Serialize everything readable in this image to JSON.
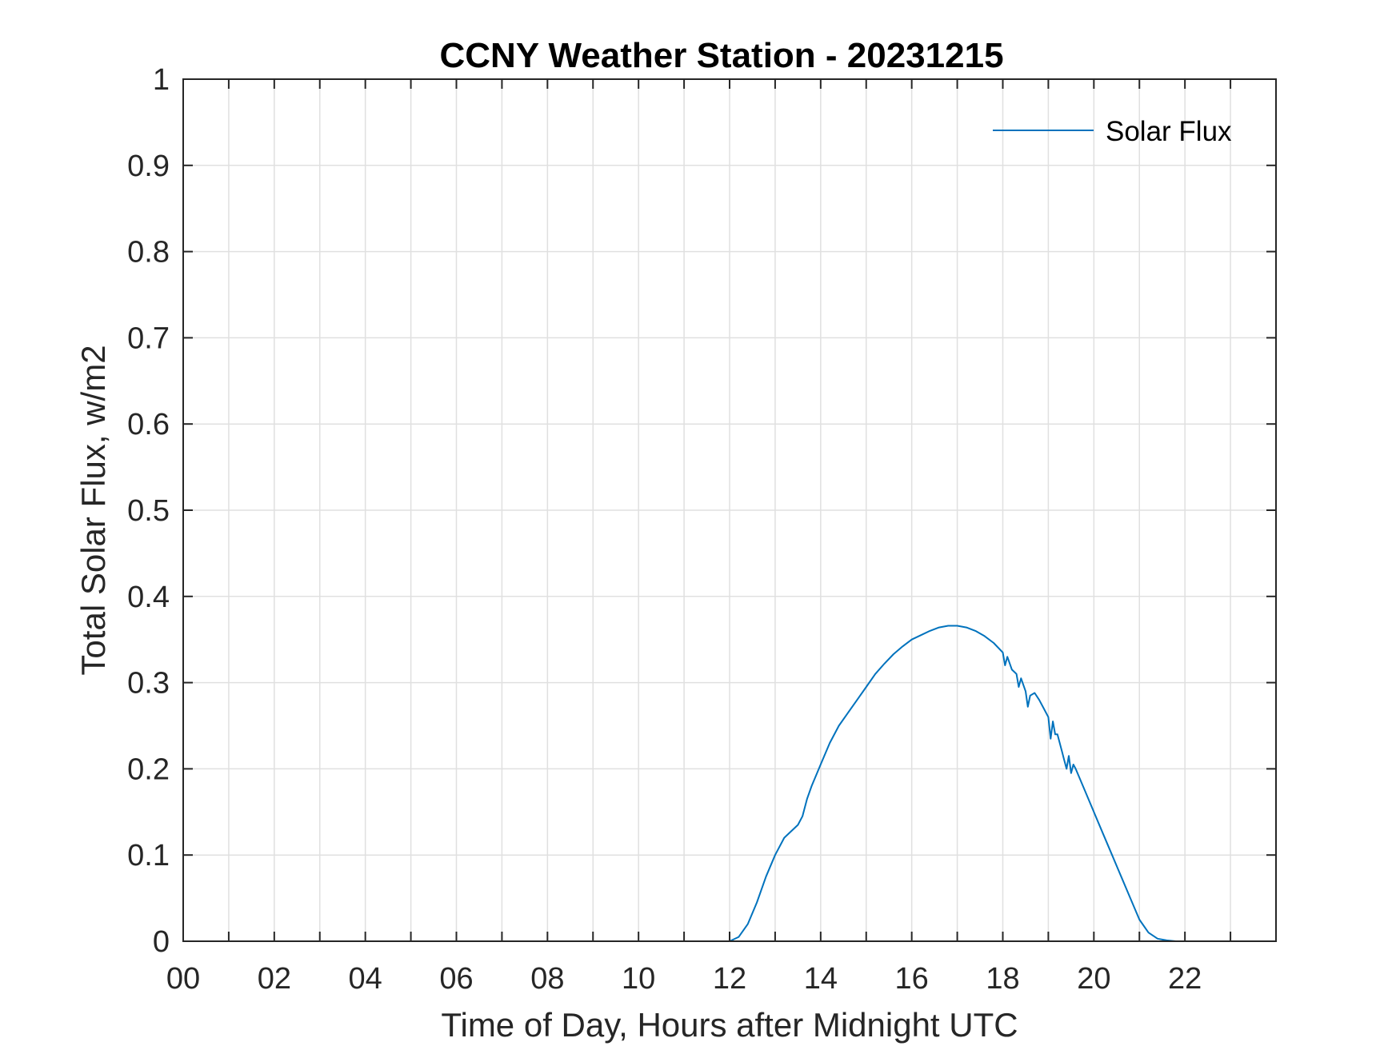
{
  "chart_data": {
    "type": "line",
    "title": "CCNY Weather Station - 20231215",
    "xlabel": "Time of Day, Hours after Midnight UTC",
    "ylabel": "Total Solar Flux, w/m2",
    "xlim": [
      0,
      24
    ],
    "ylim": [
      0,
      1
    ],
    "xticks": [
      0,
      2,
      4,
      6,
      8,
      10,
      12,
      14,
      16,
      18,
      20,
      22
    ],
    "xtick_labels": [
      "00",
      "02",
      "04",
      "06",
      "08",
      "10",
      "12",
      "14",
      "16",
      "18",
      "20",
      "22"
    ],
    "yticks": [
      0,
      0.1,
      0.2,
      0.3,
      0.4,
      0.5,
      0.6,
      0.7,
      0.8,
      0.9,
      1
    ],
    "ytick_labels": [
      "0",
      "0.1",
      "0.2",
      "0.3",
      "0.4",
      "0.5",
      "0.6",
      "0.7",
      "0.8",
      "0.9",
      "1"
    ],
    "grid": true,
    "legend_position": "top-right",
    "series": [
      {
        "name": "Solar Flux",
        "color": "#0072BD",
        "x": [
          0,
          12.0,
          12.2,
          12.4,
          12.6,
          12.8,
          13.0,
          13.2,
          13.4,
          13.5,
          13.6,
          13.7,
          13.8,
          14.0,
          14.2,
          14.4,
          14.6,
          14.8,
          15.0,
          15.2,
          15.4,
          15.6,
          15.8,
          16.0,
          16.2,
          16.4,
          16.6,
          16.8,
          17.0,
          17.2,
          17.4,
          17.6,
          17.8,
          18.0,
          18.05,
          18.1,
          18.2,
          18.3,
          18.35,
          18.4,
          18.5,
          18.55,
          18.6,
          18.7,
          18.8,
          18.9,
          19.0,
          19.05,
          19.1,
          19.15,
          19.2,
          19.3,
          19.35,
          19.4,
          19.45,
          19.5,
          19.55,
          19.6,
          19.8,
          20.0,
          20.2,
          20.4,
          20.6,
          20.8,
          21.0,
          21.2,
          21.4,
          21.6,
          21.8,
          22.0,
          24.0
        ],
        "y": [
          0,
          0,
          0.005,
          0.02,
          0.045,
          0.075,
          0.1,
          0.12,
          0.13,
          0.135,
          0.145,
          0.165,
          0.18,
          0.205,
          0.23,
          0.25,
          0.265,
          0.28,
          0.295,
          0.31,
          0.322,
          0.333,
          0.342,
          0.35,
          0.355,
          0.36,
          0.364,
          0.366,
          0.366,
          0.364,
          0.36,
          0.354,
          0.346,
          0.335,
          0.32,
          0.33,
          0.315,
          0.31,
          0.295,
          0.305,
          0.29,
          0.272,
          0.285,
          0.288,
          0.28,
          0.27,
          0.26,
          0.235,
          0.255,
          0.24,
          0.24,
          0.22,
          0.21,
          0.2,
          0.215,
          0.195,
          0.205,
          0.2,
          0.175,
          0.15,
          0.125,
          0.1,
          0.075,
          0.05,
          0.025,
          0.01,
          0.003,
          0.001,
          0,
          0,
          0
        ]
      }
    ]
  }
}
